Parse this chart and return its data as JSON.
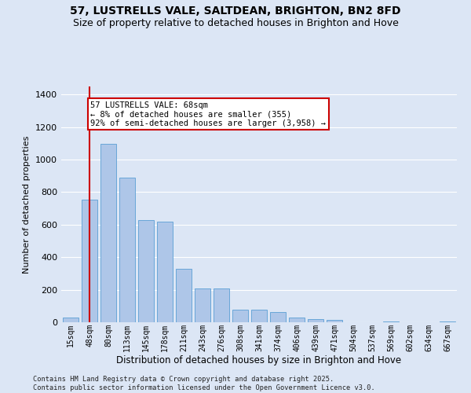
{
  "title": "57, LUSTRELLS VALE, SALTDEAN, BRIGHTON, BN2 8FD",
  "subtitle": "Size of property relative to detached houses in Brighton and Hove",
  "xlabel": "Distribution of detached houses by size in Brighton and Hove",
  "ylabel": "Number of detached properties",
  "footer": "Contains HM Land Registry data © Crown copyright and database right 2025.\nContains public sector information licensed under the Open Government Licence v3.0.",
  "categories": [
    "15sqm",
    "48sqm",
    "80sqm",
    "113sqm",
    "145sqm",
    "178sqm",
    "211sqm",
    "243sqm",
    "276sqm",
    "308sqm",
    "341sqm",
    "374sqm",
    "406sqm",
    "439sqm",
    "471sqm",
    "504sqm",
    "537sqm",
    "569sqm",
    "602sqm",
    "634sqm",
    "667sqm"
  ],
  "values": [
    30,
    755,
    1095,
    890,
    630,
    620,
    330,
    210,
    210,
    75,
    75,
    65,
    30,
    20,
    15,
    0,
    0,
    5,
    0,
    0,
    5
  ],
  "bar_color": "#aec6e8",
  "bar_edge_color": "#5a9fd4",
  "bg_color": "#dce6f5",
  "grid_color": "#ffffff",
  "vline_color": "#cc0000",
  "annotation_text": "57 LUSTRELLS VALE: 68sqm\n← 8% of detached houses are smaller (355)\n92% of semi-detached houses are larger (3,958) →",
  "annotation_box_facecolor": "#ffffff",
  "annotation_box_edgecolor": "#cc0000",
  "ylim": [
    0,
    1450
  ],
  "yticks": [
    0,
    200,
    400,
    600,
    800,
    1000,
    1200,
    1400
  ],
  "title_fontsize": 10,
  "subtitle_fontsize": 9
}
